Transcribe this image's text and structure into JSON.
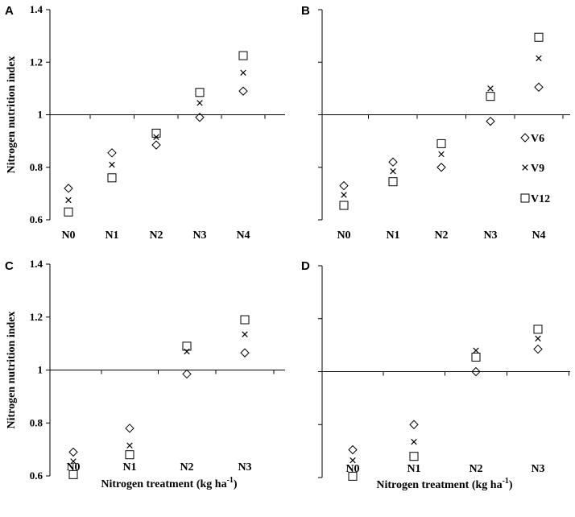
{
  "chart_data": [
    {
      "type": "scatter",
      "panel": "A",
      "categories": [
        "N0",
        "N1",
        "N2",
        "N3",
        "N4"
      ],
      "ylabel": "Nitrogen nutrition index",
      "xlabel": "",
      "ylim": [
        0.6,
        1.4
      ],
      "yticks": [
        "0.6",
        "0.8",
        "1",
        "1.2",
        "1.4"
      ],
      "grid": false,
      "series": [
        {
          "marker": "diamond",
          "values": [
            0.72,
            0.855,
            0.885,
            0.99,
            1.09
          ]
        },
        {
          "marker": "cross",
          "values": [
            0.675,
            0.81,
            0.915,
            1.045,
            1.16
          ]
        },
        {
          "marker": "square",
          "values": [
            0.63,
            0.76,
            0.93,
            1.085,
            1.225
          ]
        }
      ]
    },
    {
      "type": "scatter",
      "panel": "B",
      "categories": [
        "N0",
        "N1",
        "N2",
        "N3",
        "N4"
      ],
      "ylabel": "",
      "xlabel": "",
      "ylim": [
        0.6,
        1.4
      ],
      "yticks": [],
      "grid": false,
      "legend": "right",
      "series": [
        {
          "name": "V6",
          "marker": "diamond",
          "values": [
            0.73,
            0.82,
            0.8,
            0.975,
            1.105
          ]
        },
        {
          "name": "V9",
          "marker": "cross",
          "values": [
            0.695,
            0.785,
            0.85,
            1.1,
            1.215
          ]
        },
        {
          "name": "V12",
          "marker": "square",
          "values": [
            0.655,
            0.745,
            0.89,
            1.07,
            1.295
          ]
        }
      ]
    },
    {
      "type": "scatter",
      "panel": "C",
      "categories": [
        "N0",
        "N1",
        "N2",
        "N3"
      ],
      "ylabel": "Nitrogen nutrition index",
      "xlabel": "Nitrogen treatment (kg ha",
      "xlabel_sup": "-1",
      "xlabel_end": ")",
      "ylim": [
        0.6,
        1.4
      ],
      "yticks": [
        "0.6",
        "0.8",
        "1",
        "1.2",
        "1.4"
      ],
      "grid": false,
      "series": [
        {
          "marker": "diamond",
          "values": [
            0.69,
            0.78,
            0.985,
            1.065
          ]
        },
        {
          "marker": "cross",
          "values": [
            0.655,
            0.715,
            1.07,
            1.135
          ]
        },
        {
          "marker": "square",
          "values": [
            0.605,
            0.68,
            1.09,
            1.19
          ]
        }
      ]
    },
    {
      "type": "scatter",
      "panel": "D",
      "categories": [
        "N0",
        "N1",
        "N2",
        "N3"
      ],
      "ylabel": "",
      "xlabel": "Nitrogen treatment (kg ha",
      "xlabel_sup": "-1",
      "xlabel_end": ")",
      "ylim": [
        0.6,
        1.4
      ],
      "yticks": [],
      "grid": false,
      "series": [
        {
          "marker": "diamond",
          "values": [
            0.705,
            0.8,
            1.0,
            1.085
          ]
        },
        {
          "marker": "cross",
          "values": [
            0.665,
            0.735,
            1.08,
            1.125
          ]
        },
        {
          "marker": "square",
          "values": [
            0.605,
            0.68,
            1.055,
            1.16
          ]
        }
      ]
    }
  ]
}
